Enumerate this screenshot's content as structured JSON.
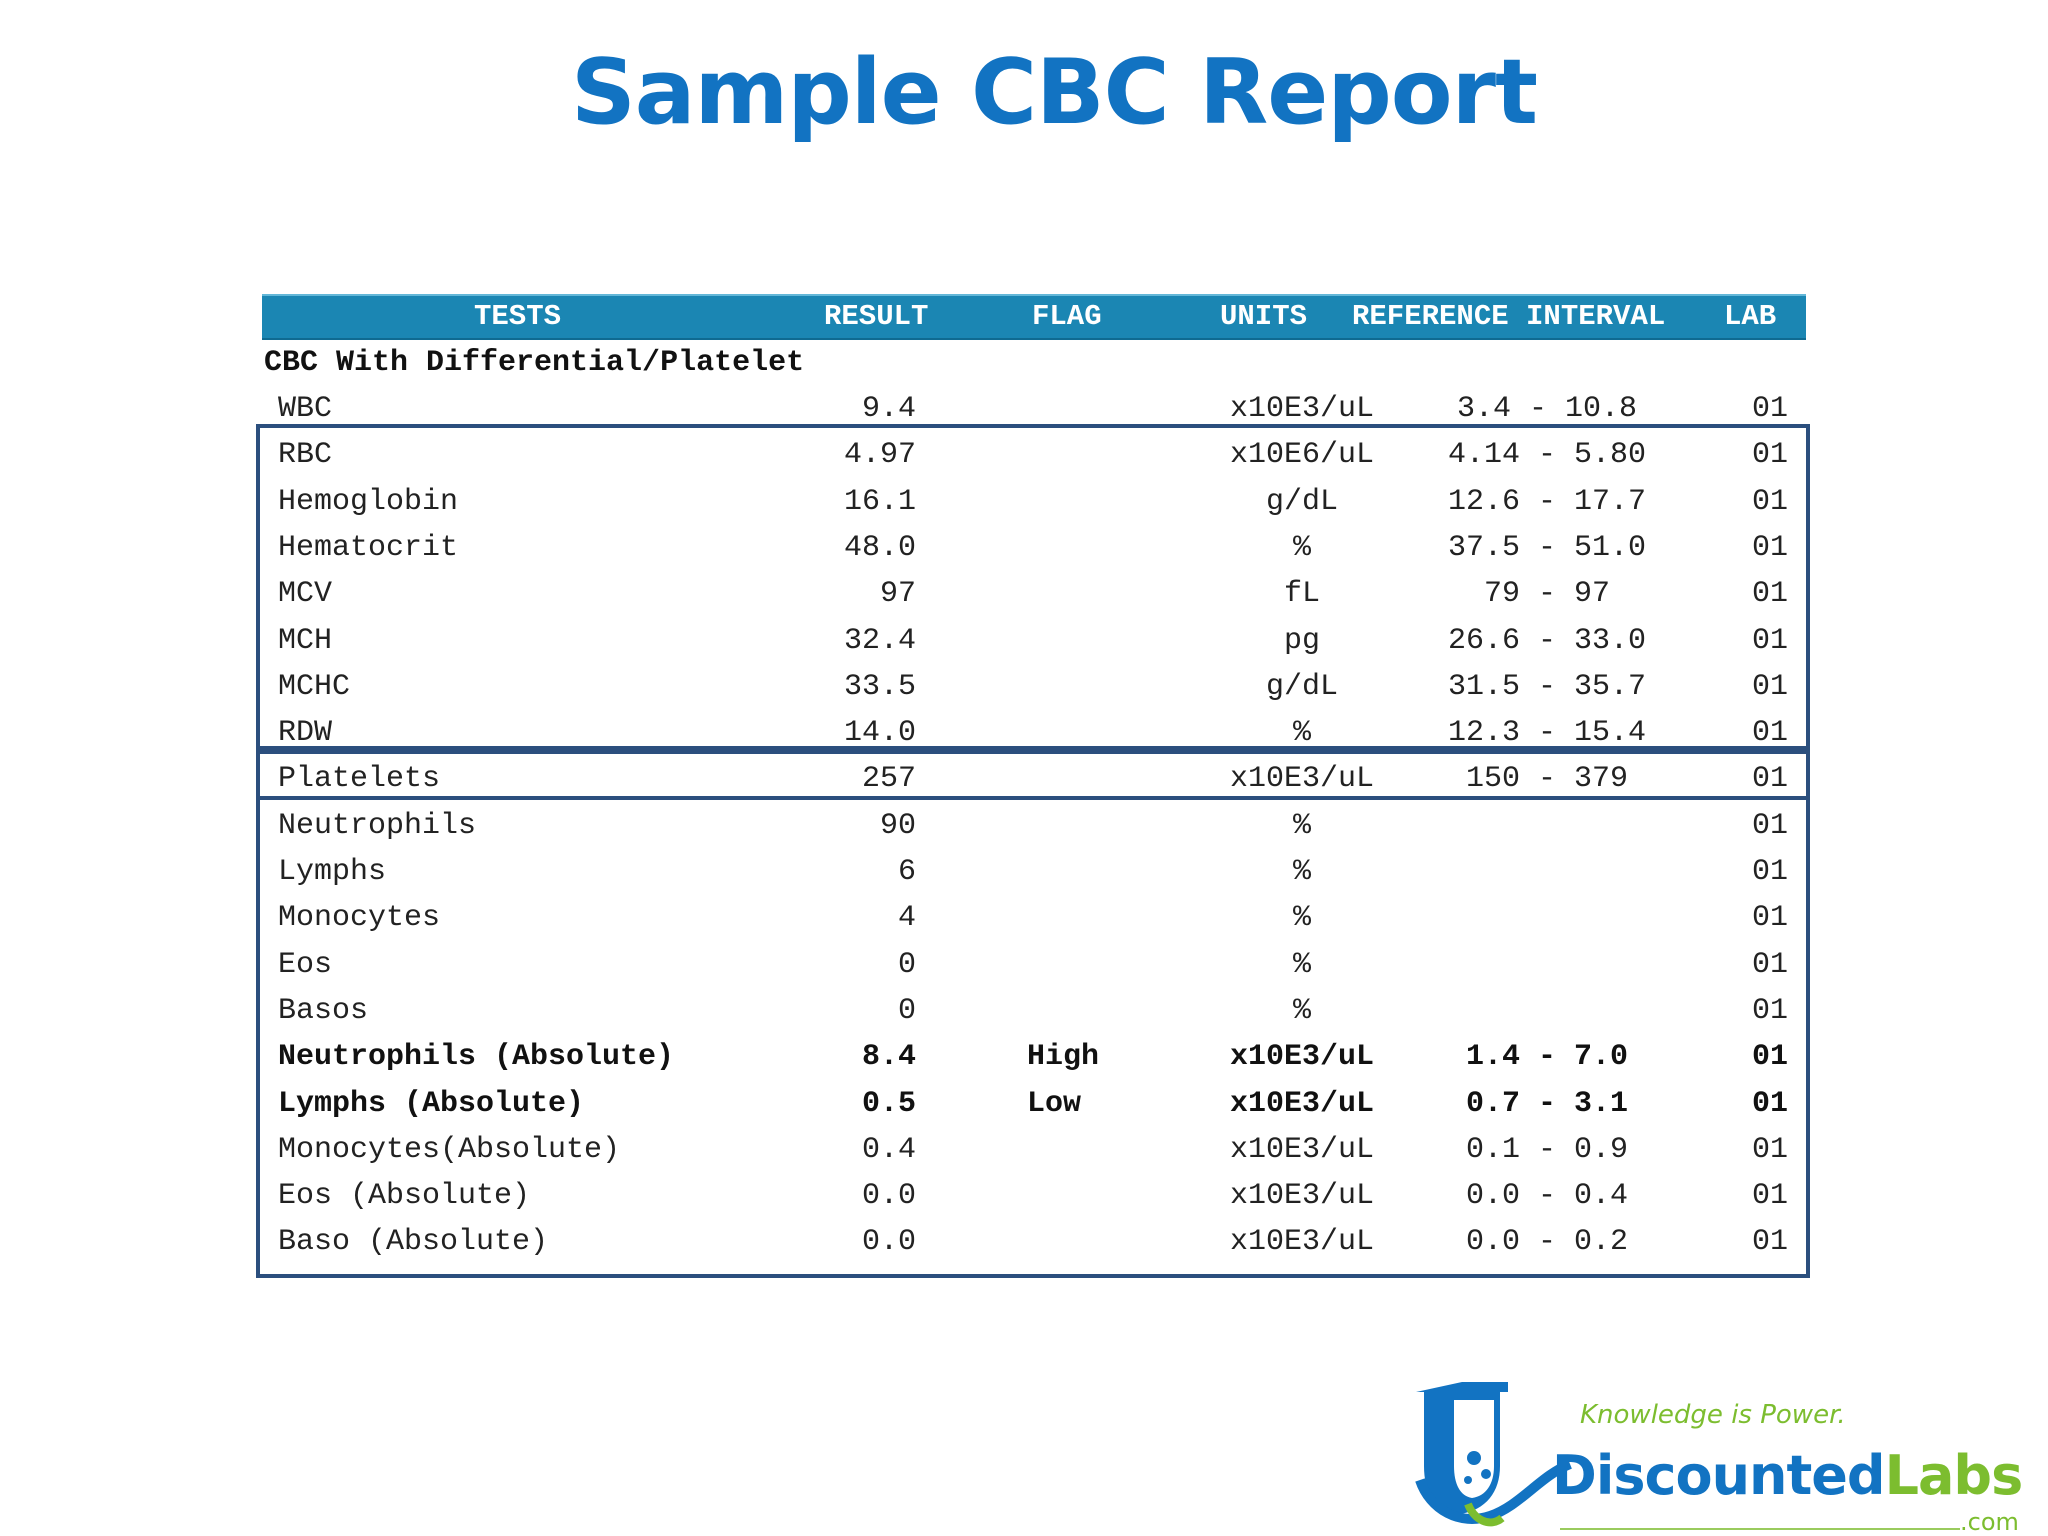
{
  "title": "Sample CBC Report",
  "header": {
    "tests": "TESTS",
    "result": "RESULT",
    "flag": "FLAG",
    "units": "UNITS",
    "reference": "REFERENCE INTERVAL",
    "lab": "LAB"
  },
  "section_title": "CBC With Differential/Platelet",
  "rows": [
    {
      "test": "WBC",
      "result": "9.4",
      "flag": "",
      "units": "x10E3/uL",
      "ref": "3.4 - 10.8",
      "lab": "01"
    },
    {
      "test": "RBC",
      "result": "4.97",
      "flag": "",
      "units": "x10E6/uL",
      "ref": "4.14 - 5.80",
      "lab": "01"
    },
    {
      "test": "Hemoglobin",
      "result": "16.1",
      "flag": "",
      "units": "g/dL",
      "ref": "12.6 - 17.7",
      "lab": "01"
    },
    {
      "test": "Hematocrit",
      "result": "48.0",
      "flag": "",
      "units": "%",
      "ref": "37.5 - 51.0",
      "lab": "01"
    },
    {
      "test": "MCV",
      "result": "97",
      "flag": "",
      "units": "fL",
      "ref": "79 - 97",
      "lab": "01"
    },
    {
      "test": "MCH",
      "result": "32.4",
      "flag": "",
      "units": "pg",
      "ref": "26.6 - 33.0",
      "lab": "01"
    },
    {
      "test": "MCHC",
      "result": "33.5",
      "flag": "",
      "units": "g/dL",
      "ref": "31.5 - 35.7",
      "lab": "01"
    },
    {
      "test": "RDW",
      "result": "14.0",
      "flag": "",
      "units": "%",
      "ref": "12.3 - 15.4",
      "lab": "01"
    },
    {
      "test": "Platelets",
      "result": "257",
      "flag": "",
      "units": "x10E3/uL",
      "ref": "150 - 379",
      "lab": "01"
    },
    {
      "test": "Neutrophils",
      "result": "90",
      "flag": "",
      "units": "%",
      "ref": "",
      "lab": "01"
    },
    {
      "test": "Lymphs",
      "result": "6",
      "flag": "",
      "units": "%",
      "ref": "",
      "lab": "01"
    },
    {
      "test": "Monocytes",
      "result": "4",
      "flag": "",
      "units": "%",
      "ref": "",
      "lab": "01"
    },
    {
      "test": "Eos",
      "result": "0",
      "flag": "",
      "units": "%",
      "ref": "",
      "lab": "01"
    },
    {
      "test": "Basos",
      "result": "0",
      "flag": "",
      "units": "%",
      "ref": "",
      "lab": "01"
    },
    {
      "test": "Neutrophils (Absolute)",
      "result": "8.4",
      "flag": "High",
      "units": "x10E3/uL",
      "ref": "1.4 - 7.0",
      "lab": "01"
    },
    {
      "test": "Lymphs (Absolute)",
      "result": "0.5",
      "flag": "Low",
      "units": "x10E3/uL",
      "ref": "0.7 - 3.1",
      "lab": "01"
    },
    {
      "test": "Monocytes(Absolute)",
      "result": "0.4",
      "flag": "",
      "units": "x10E3/uL",
      "ref": "0.1 - 0.9",
      "lab": "01"
    },
    {
      "test": "Eos (Absolute)",
      "result": "0.0",
      "flag": "",
      "units": "x10E3/uL",
      "ref": "0.0 - 0.4",
      "lab": "01"
    },
    {
      "test": "Baso (Absolute)",
      "result": "0.0",
      "flag": "",
      "units": "x10E3/uL",
      "ref": "0.0 - 0.2",
      "lab": "01"
    }
  ],
  "logo": {
    "tagline": "Knowledge is Power.",
    "name_part1": "Discounted",
    "name_part2": "Labs",
    "domain": ".com"
  },
  "colors": {
    "title": "#1273c2",
    "header_bg": "#1b86b3",
    "box_border": "#2b4f7e",
    "logo_green": "#7cbd2f"
  }
}
